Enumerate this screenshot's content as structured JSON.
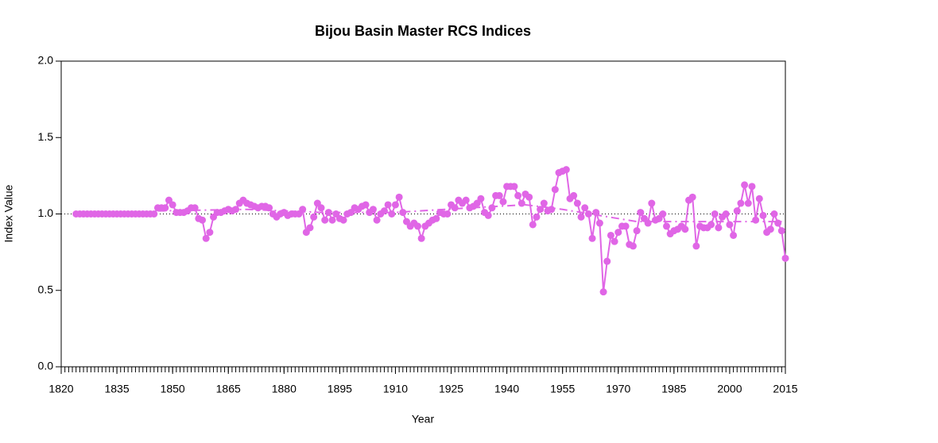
{
  "chart_data": {
    "type": "line",
    "title": "Bijou Basin Master RCS Indices",
    "xlabel": "Year",
    "ylabel": "Index Value",
    "x": [
      1824,
      1825,
      1826,
      1827,
      1828,
      1829,
      1830,
      1831,
      1832,
      1833,
      1834,
      1835,
      1836,
      1837,
      1838,
      1839,
      1840,
      1841,
      1842,
      1843,
      1844,
      1845,
      1846,
      1847,
      1848,
      1849,
      1850,
      1851,
      1852,
      1853,
      1854,
      1855,
      1856,
      1857,
      1858,
      1859,
      1860,
      1861,
      1862,
      1863,
      1864,
      1865,
      1866,
      1867,
      1868,
      1869,
      1870,
      1871,
      1872,
      1873,
      1874,
      1875,
      1876,
      1877,
      1878,
      1879,
      1880,
      1881,
      1882,
      1883,
      1884,
      1885,
      1886,
      1887,
      1888,
      1889,
      1890,
      1891,
      1892,
      1893,
      1894,
      1895,
      1896,
      1897,
      1898,
      1899,
      1900,
      1901,
      1902,
      1903,
      1904,
      1905,
      1906,
      1907,
      1908,
      1909,
      1910,
      1911,
      1912,
      1913,
      1914,
      1915,
      1916,
      1917,
      1918,
      1919,
      1920,
      1921,
      1922,
      1923,
      1924,
      1925,
      1926,
      1927,
      1928,
      1929,
      1930,
      1931,
      1932,
      1933,
      1934,
      1935,
      1936,
      1937,
      1938,
      1939,
      1940,
      1941,
      1942,
      1943,
      1944,
      1945,
      1946,
      1947,
      1948,
      1949,
      1950,
      1951,
      1952,
      1953,
      1954,
      1955,
      1956,
      1957,
      1958,
      1959,
      1960,
      1961,
      1962,
      1963,
      1964,
      1965,
      1966,
      1967,
      1968,
      1969,
      1970,
      1971,
      1972,
      1973,
      1974,
      1975,
      1976,
      1977,
      1978,
      1979,
      1980,
      1981,
      1982,
      1983,
      1984,
      1985,
      1986,
      1987,
      1988,
      1989,
      1990,
      1991,
      1992,
      1993,
      1994,
      1995,
      1996,
      1997,
      1998,
      1999,
      2000,
      2001,
      2002,
      2003,
      2004,
      2005,
      2006,
      2007,
      2008,
      2009,
      2010,
      2011,
      2012,
      2013,
      2014,
      2015
    ],
    "series": [
      {
        "color": "#e066e6",
        "style": "solid",
        "markers": true,
        "values": [
          1.0,
          1.0,
          1.0,
          1.0,
          1.0,
          1.0,
          1.0,
          1.0,
          1.0,
          1.0,
          1.0,
          1.0,
          1.0,
          1.0,
          1.0,
          1.0,
          1.0,
          1.0,
          1.0,
          1.0,
          1.0,
          1.0,
          1.04,
          1.04,
          1.04,
          1.09,
          1.06,
          1.01,
          1.01,
          1.01,
          1.02,
          1.04,
          1.04,
          0.97,
          0.96,
          0.84,
          0.88,
          0.98,
          1.01,
          1.01,
          1.02,
          1.03,
          1.02,
          1.03,
          1.07,
          1.09,
          1.07,
          1.06,
          1.05,
          1.04,
          1.05,
          1.05,
          1.04,
          1.0,
          0.98,
          1.0,
          1.01,
          0.99,
          1.0,
          1.0,
          1.0,
          1.03,
          0.88,
          0.91,
          0.98,
          1.07,
          1.04,
          0.96,
          1.01,
          0.96,
          1.0,
          0.97,
          0.96,
          1.0,
          1.01,
          1.04,
          1.03,
          1.05,
          1.06,
          1.01,
          1.03,
          0.96,
          1.0,
          1.02,
          1.06,
          1.0,
          1.06,
          1.11,
          1.01,
          0.95,
          0.92,
          0.94,
          0.92,
          0.84,
          0.92,
          0.94,
          0.96,
          0.97,
          1.01,
          1.0,
          1.0,
          1.06,
          1.04,
          1.09,
          1.07,
          1.09,
          1.04,
          1.05,
          1.07,
          1.1,
          1.01,
          0.99,
          1.04,
          1.12,
          1.12,
          1.08,
          1.18,
          1.18,
          1.18,
          1.12,
          1.07,
          1.13,
          1.11,
          0.93,
          0.98,
          1.03,
          1.07,
          1.02,
          1.03,
          1.16,
          1.27,
          1.28,
          1.29,
          1.1,
          1.12,
          1.07,
          0.98,
          1.04,
          1.0,
          0.84,
          1.01,
          0.94,
          0.49,
          0.69,
          0.86,
          0.82,
          0.88,
          0.92,
          0.92,
          0.8,
          0.79,
          0.89,
          1.01,
          0.97,
          0.94,
          1.07,
          0.96,
          0.97,
          1.0,
          0.92,
          0.87,
          0.89,
          0.9,
          0.92,
          0.9,
          1.09,
          1.11,
          0.79,
          0.92,
          0.91,
          0.91,
          0.93,
          1.0,
          0.91,
          0.98,
          1.0,
          0.93,
          0.86,
          1.02,
          1.07,
          1.19,
          1.07,
          1.18,
          0.96,
          1.1,
          0.99,
          0.88,
          0.9,
          1.0,
          0.94,
          0.89,
          0.71
        ]
      },
      {
        "color": "#e066e6",
        "style": "dashdot",
        "markers": false,
        "x": [
          1846,
          1870,
          1890,
          1910,
          1930,
          1945,
          1955,
          1975,
          1995,
          2015
        ],
        "values": [
          1.02,
          1.03,
          1.01,
          1.01,
          1.04,
          1.06,
          1.03,
          0.95,
          0.95,
          0.95
        ]
      }
    ],
    "reference_line": 1.0,
    "xlim": [
      1820,
      2015
    ],
    "xticks": [
      1820,
      1835,
      1850,
      1865,
      1880,
      1895,
      1910,
      1925,
      1940,
      1955,
      1970,
      1985,
      2000,
      2015
    ],
    "minor_xtick_step": 1,
    "ylim": [
      0,
      2
    ],
    "yticks": [
      {
        "value": 0,
        "label": "0.0"
      },
      {
        "value": 0.5,
        "label": "0.5"
      },
      {
        "value": 1,
        "label": "1.0"
      },
      {
        "value": 1.5,
        "label": "1.5"
      },
      {
        "value": 2,
        "label": "2.0"
      }
    ]
  }
}
